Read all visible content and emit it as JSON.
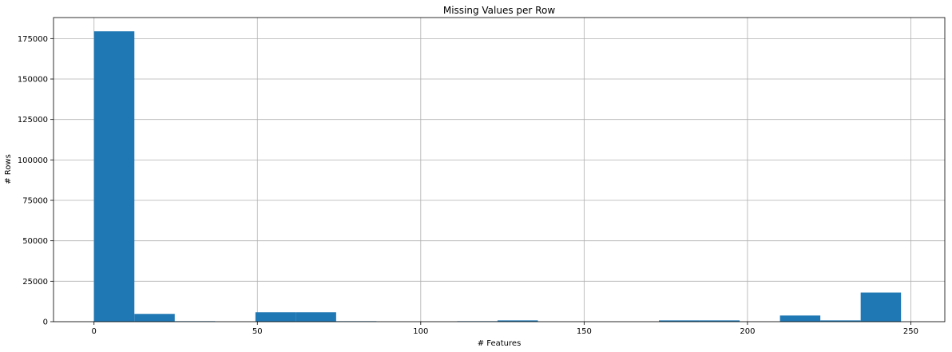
{
  "chart_data": {
    "type": "bar",
    "title": "Missing Values per Row",
    "xlabel": "# Features",
    "ylabel": "# Rows",
    "xlim": [
      -12.4,
      260.4
    ],
    "ylim": [
      0,
      188000
    ],
    "xticks": [
      0,
      50,
      100,
      150,
      200,
      250
    ],
    "yticks": [
      0,
      25000,
      50000,
      75000,
      100000,
      125000,
      150000,
      175000
    ],
    "grid": true,
    "legend": "none",
    "bar_color": "#1f77b4",
    "bins": [
      {
        "x0": 0.0,
        "x1": 12.35,
        "count": 179500
      },
      {
        "x0": 12.35,
        "x1": 24.7,
        "count": 4800
      },
      {
        "x0": 24.7,
        "x1": 37.05,
        "count": 300
      },
      {
        "x0": 37.05,
        "x1": 49.4,
        "count": 0
      },
      {
        "x0": 49.4,
        "x1": 61.75,
        "count": 5800
      },
      {
        "x0": 61.75,
        "x1": 74.1,
        "count": 5800
      },
      {
        "x0": 74.1,
        "x1": 86.45,
        "count": 300
      },
      {
        "x0": 86.45,
        "x1": 98.8,
        "count": 0
      },
      {
        "x0": 98.8,
        "x1": 111.15,
        "count": 0
      },
      {
        "x0": 111.15,
        "x1": 123.5,
        "count": 300
      },
      {
        "x0": 123.5,
        "x1": 135.85,
        "count": 800
      },
      {
        "x0": 135.85,
        "x1": 148.2,
        "count": 0
      },
      {
        "x0": 148.2,
        "x1": 160.55,
        "count": 0
      },
      {
        "x0": 160.55,
        "x1": 172.9,
        "count": 0
      },
      {
        "x0": 172.9,
        "x1": 185.25,
        "count": 800
      },
      {
        "x0": 185.25,
        "x1": 197.6,
        "count": 800
      },
      {
        "x0": 197.6,
        "x1": 209.95,
        "count": 0
      },
      {
        "x0": 209.95,
        "x1": 222.3,
        "count": 3800
      },
      {
        "x0": 222.3,
        "x1": 234.65,
        "count": 800
      },
      {
        "x0": 234.65,
        "x1": 247.0,
        "count": 18000
      }
    ]
  }
}
